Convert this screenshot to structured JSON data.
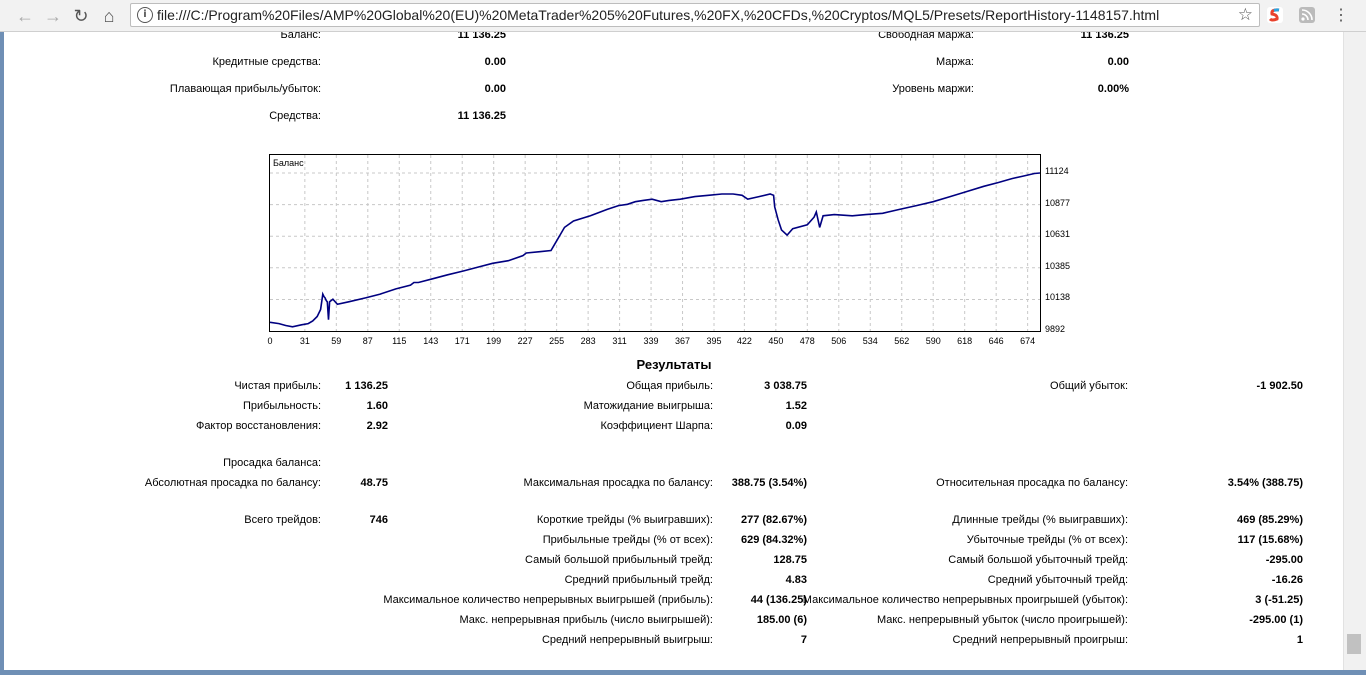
{
  "browser": {
    "url": "file:///C:/Program%20Files/AMP%20Global%20(EU)%20MetaTrader%205%20Futures,%20FX,%20CFDs,%20Cryptos/MQL5/Presets/ReportHistory-1148157.html"
  },
  "summary": {
    "balance_label": "Баланс:",
    "balance": "11 136.25",
    "credit_label": "Кредитные средства:",
    "credit": "0.00",
    "floating_label": "Плавающая прибыль/убыток:",
    "floating": "0.00",
    "equity_label": "Средства:",
    "equity": "11 136.25",
    "free_margin_label": "Свободная маржа:",
    "free_margin": "11 136.25",
    "margin_label": "Маржа:",
    "margin": "0.00",
    "margin_level_label": "Уровень маржи:",
    "margin_level": "0.00%"
  },
  "chart_data": {
    "type": "line",
    "title": "Баланс",
    "x_ticks": [
      "0",
      "31",
      "59",
      "87",
      "115",
      "143",
      "171",
      "199",
      "227",
      "255",
      "283",
      "311",
      "339",
      "367",
      "395",
      "422",
      "450",
      "478",
      "506",
      "534",
      "562",
      "590",
      "618",
      "646",
      "674"
    ],
    "y_ticks": [
      "11124",
      "10877",
      "10631",
      "10385",
      "10138",
      "9892"
    ],
    "xlim": [
      0,
      685
    ],
    "ylim": [
      9892,
      11210
    ],
    "series": [
      {
        "color": "#000080",
        "x": [
          0,
          8,
          14,
          20,
          28,
          34,
          38,
          42,
          45,
          47,
          48,
          49,
          50,
          51,
          52,
          53,
          56,
          60,
          70,
          85,
          98,
          112,
          125,
          128,
          132,
          145,
          158,
          172,
          185,
          198,
          212,
          225,
          228,
          240,
          250,
          254,
          258,
          262,
          270,
          285,
          300,
          310,
          318,
          325,
          332,
          340,
          348,
          355,
          365,
          378,
          390,
          402,
          412,
          420,
          425,
          435,
          445,
          448,
          449,
          452,
          455,
          460,
          465,
          478,
          484,
          486,
          489,
          492,
          502,
          518,
          530,
          545,
          560,
          575,
          590,
          605,
          620,
          635,
          648,
          660,
          670,
          680,
          685
        ],
        "y": [
          9960,
          9950,
          9935,
          9925,
          9940,
          9950,
          9970,
          10005,
          10060,
          10180,
          10160,
          10150,
          10130,
          10120,
          9980,
          10120,
          10140,
          10100,
          10120,
          10150,
          10180,
          10220,
          10250,
          10270,
          10270,
          10300,
          10330,
          10360,
          10390,
          10420,
          10440,
          10480,
          10500,
          10510,
          10520,
          10580,
          10640,
          10700,
          10750,
          10790,
          10840,
          10870,
          10880,
          10900,
          10910,
          10920,
          10900,
          10910,
          10920,
          10940,
          10950,
          10960,
          10960,
          10950,
          10920,
          10940,
          10960,
          10950,
          10860,
          10760,
          10680,
          10640,
          10690,
          10720,
          10780,
          10820,
          10700,
          10790,
          10800,
          10790,
          10800,
          10810,
          10840,
          10870,
          10900,
          10940,
          10980,
          11020,
          11050,
          11080,
          11100,
          11120,
          11124
        ]
      }
    ],
    "grid": true
  },
  "results": {
    "title": "Результаты",
    "net_profit_label": "Чистая прибыль:",
    "net_profit": "1 136.25",
    "gross_profit_label": "Общая прибыль:",
    "gross_profit": "3 038.75",
    "gross_loss_label": "Общий убыток:",
    "gross_loss": "-1 902.50",
    "profitability_label": "Прибыльность:",
    "profitability": "1.60",
    "expected_payoff_label": "Матожидание выигрыша:",
    "expected_payoff": "1.52",
    "recovery_factor_label": "Фактор восстановления:",
    "recovery_factor": "2.92",
    "sharpe_label": "Коэффициент Шарпа:",
    "sharpe": "0.09",
    "balance_drawdown_label": "Просадка баланса:",
    "abs_dd_label": "Абсолютная просадка по балансу:",
    "abs_dd": "48.75",
    "max_dd_label": "Максимальная просадка по балансу:",
    "max_dd": "388.75 (3.54%)",
    "rel_dd_label": "Относительная просадка по балансу:",
    "rel_dd": "3.54% (388.75)",
    "total_trades_label": "Всего трейдов:",
    "total_trades": "746",
    "short_label": "Короткие трейды (% выигравших):",
    "short": "277 (82.67%)",
    "long_label": "Длинные трейды (% выигравших):",
    "long": "469 (85.29%)",
    "profit_trades_label": "Прибыльные трейды (% от всех):",
    "profit_trades": "629 (84.32%)",
    "loss_trades_label": "Убыточные трейды (% от всех):",
    "loss_trades": "117 (15.68%)",
    "largest_profit_label": "Самый большой прибыльный трейд:",
    "largest_profit": "128.75",
    "largest_loss_label": "Самый большой убыточный трейд:",
    "largest_loss": "-295.00",
    "avg_profit_label": "Средний прибыльный трейд:",
    "avg_profit": "4.83",
    "avg_loss_label": "Средний убыточный трейд:",
    "avg_loss": "-16.26",
    "max_cons_wins_label": "Максимальное количество непрерывных выигрышей (прибыль):",
    "max_cons_wins": "44 (136.25)",
    "max_cons_losses_label": "Максимальное количество непрерывных проигрышей (убыток):",
    "max_cons_losses": "3 (-51.25)",
    "max_cons_profit_label": "Макс. непрерывная прибыль (число выигрышей):",
    "max_cons_profit": "185.00 (6)",
    "max_cons_loss_label": "Макс. непрерывный убыток (число проигрышей):",
    "max_cons_loss": "-295.00 (1)",
    "avg_cons_wins_label": "Средний непрерывный выигрыш:",
    "avg_cons_wins": "7",
    "avg_cons_losses_label": "Средний непрерывный проигрыш:",
    "avg_cons_losses": "1"
  }
}
